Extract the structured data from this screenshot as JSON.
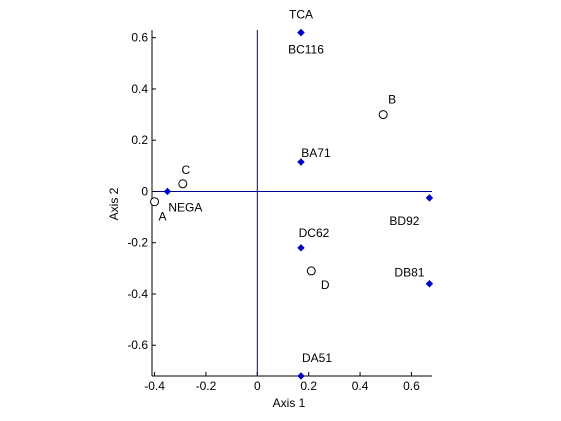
{
  "chart_data": {
    "type": "scatter",
    "xlabel": "Axis 1",
    "ylabel": "Axis 2",
    "xlim": [
      -0.41,
      0.68
    ],
    "ylim": [
      -0.72,
      0.63
    ],
    "xticks": [
      -0.4,
      -0.2,
      0,
      0.2,
      0.4,
      0.6
    ],
    "xtick_labels": [
      "-0.4",
      "-0.2",
      "0",
      "0.2",
      "0.4",
      "0.6"
    ],
    "yticks": [
      0.6,
      0.4,
      0.2,
      0,
      -0.2,
      -0.4,
      -0.6
    ],
    "ytick_labels": [
      "0.6",
      "0.4",
      "0.2",
      "0",
      "-0.2",
      "-0.4",
      "-0.6"
    ],
    "grid": false,
    "zero_lines": true,
    "line_color": "#00008b",
    "series": [
      {
        "marker": "diamond",
        "color": "#0000cc",
        "points": [
          {
            "label": "TCA",
            "x": 0.17,
            "y": 0.62
          },
          {
            "label": "BC116",
            "x": 0.17,
            "y": 0.62
          },
          {
            "label": "BA71",
            "x": 0.17,
            "y": 0.115
          },
          {
            "label": "NEGA",
            "x": -0.35,
            "y": 0.0
          },
          {
            "label": "BD92",
            "x": 0.67,
            "y": -0.025
          },
          {
            "label": "DC62",
            "x": 0.17,
            "y": -0.22
          },
          {
            "label": "DB81",
            "x": 0.67,
            "y": -0.36
          },
          {
            "label": "DA51",
            "x": 0.17,
            "y": -0.72
          }
        ]
      },
      {
        "marker": "circle",
        "color": "#000000",
        "points": [
          {
            "label": "A",
            "x": -0.4,
            "y": -0.04
          },
          {
            "label": "C",
            "x": -0.29,
            "y": 0.03
          },
          {
            "label": "B",
            "x": 0.49,
            "y": 0.3
          },
          {
            "label": "D",
            "x": 0.21,
            "y": -0.31
          }
        ]
      }
    ]
  }
}
